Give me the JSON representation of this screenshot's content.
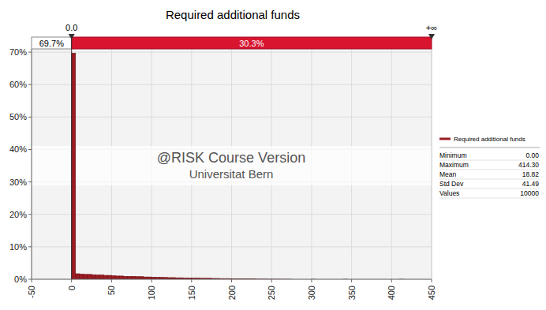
{
  "chart_data": {
    "type": "histogram",
    "title": "Required additional funds",
    "series": [
      {
        "name": "Required additional funds",
        "color": "#9b1b22"
      }
    ],
    "bins": [
      0,
      5,
      10,
      15,
      20,
      25,
      30,
      35,
      40,
      45,
      50,
      55,
      60,
      65,
      70,
      75,
      80,
      85,
      90,
      95,
      100,
      105,
      110,
      115,
      120,
      125,
      130,
      135,
      140,
      145,
      150,
      155,
      160,
      165,
      170,
      175,
      180,
      185,
      190,
      195,
      200,
      205,
      210,
      215,
      220,
      225,
      230,
      235,
      240,
      245,
      250,
      255,
      260,
      265,
      270,
      275,
      280,
      285,
      290,
      295,
      300,
      305,
      310,
      315,
      320,
      325,
      330,
      335,
      340,
      345,
      350,
      355,
      360,
      365,
      370,
      375,
      380,
      385,
      390,
      395,
      400,
      405,
      410,
      415,
      420
    ],
    "values": [
      69.7,
      1.7,
      1.6,
      1.5,
      1.5,
      1.4,
      1.3,
      1.3,
      1.2,
      1.2,
      1.1,
      1.0,
      1.0,
      0.9,
      0.9,
      0.9,
      0.8,
      0.8,
      0.7,
      0.7,
      0.65,
      0.6,
      0.6,
      0.55,
      0.5,
      0.5,
      0.45,
      0.45,
      0.4,
      0.4,
      0.35,
      0.35,
      0.3,
      0.3,
      0.3,
      0.25,
      0.25,
      0.2,
      0.2,
      0.2,
      0.15,
      0.15,
      0.12,
      0.1,
      0.1,
      0.08,
      0.06,
      0.05,
      0.05,
      0.03,
      0.03,
      0.02,
      0.01,
      0.01,
      0.01,
      0,
      0,
      0,
      0,
      0,
      0.01,
      0,
      0,
      0,
      0,
      0,
      0,
      0,
      0.01,
      0,
      0,
      0,
      0,
      0,
      0,
      0,
      0,
      0,
      0,
      0,
      0,
      0,
      0.01,
      0
    ],
    "xlim": [
      -50,
      450
    ],
    "xticks": [
      -50,
      0,
      50,
      100,
      150,
      200,
      250,
      300,
      350,
      400,
      450
    ],
    "ylim": [
      0,
      71
    ],
    "yticks": [
      {
        "value": 0,
        "label": "0%"
      },
      {
        "value": 10,
        "label": "10%"
      },
      {
        "value": 20,
        "label": "20%"
      },
      {
        "value": 30,
        "label": "30%"
      },
      {
        "value": 40,
        "label": "40%"
      },
      {
        "value": 50,
        "label": "50%"
      },
      {
        "value": 60,
        "label": "60%"
      },
      {
        "value": 70,
        "label": "70%"
      }
    ],
    "grid": true,
    "legend": "right",
    "delimiter": {
      "left": {
        "value": 0,
        "label": "0.0"
      },
      "right": {
        "label": "+∞"
      },
      "percents": [
        {
          "value": 69.7,
          "label": "69.7%"
        },
        {
          "value": 30.3,
          "label": "30.3%"
        }
      ]
    },
    "stats": [
      {
        "label": "Minimum",
        "value": "0.00"
      },
      {
        "label": "Maximum",
        "value": "414.30"
      },
      {
        "label": "Mean",
        "value": "18.82"
      },
      {
        "label": "Std Dev",
        "value": "41.49"
      },
      {
        "label": "Values",
        "value": "10000"
      }
    ],
    "watermark": [
      "@RISK Course Version",
      "Universitat Bern"
    ]
  }
}
